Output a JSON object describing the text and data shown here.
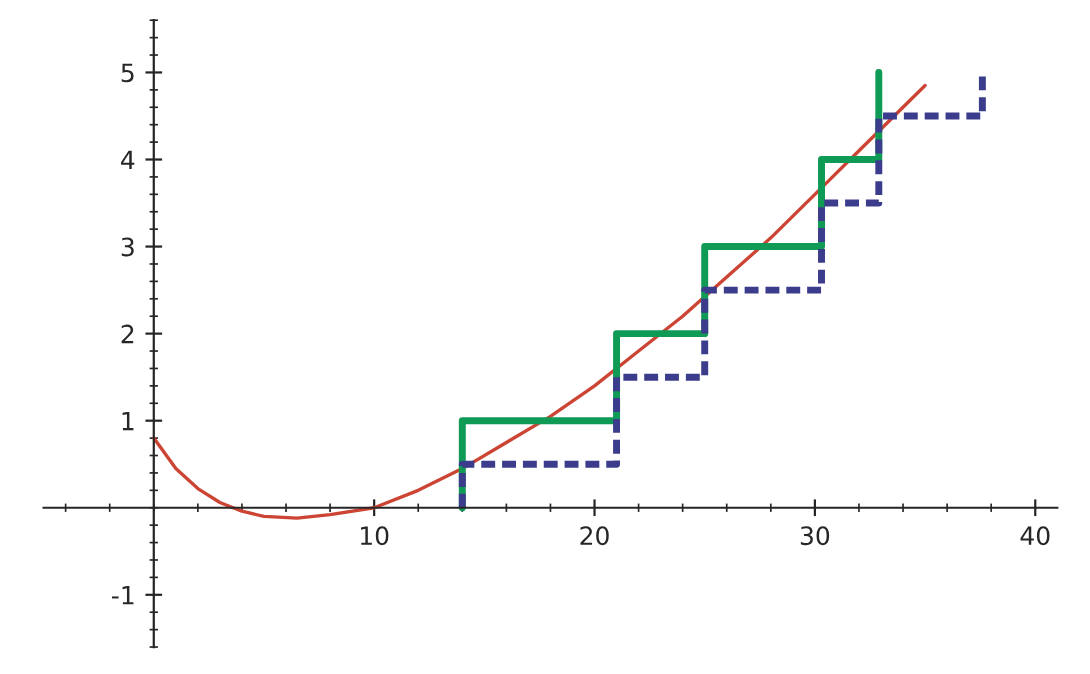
{
  "chart_data": {
    "type": "line",
    "xlim": [
      -5,
      41
    ],
    "ylim": [
      -1.6,
      5.6
    ],
    "xticks": [
      10,
      20,
      30,
      40
    ],
    "yticks": [
      -1,
      1,
      2,
      3,
      4,
      5
    ],
    "grid": false,
    "legend": false,
    "series": [
      {
        "color": "#cc4433",
        "line_style": "solid",
        "x": [
          0,
          1,
          2,
          3,
          4,
          5,
          6.5,
          8,
          10,
          12,
          14,
          16,
          18,
          20,
          22,
          24,
          26,
          28,
          30,
          32,
          34,
          35
        ],
        "values": [
          0.8,
          0.45,
          0.22,
          0.06,
          -0.04,
          -0.1,
          -0.12,
          -0.08,
          0.0,
          0.2,
          0.45,
          0.75,
          1.05,
          1.4,
          1.8,
          2.2,
          2.65,
          3.1,
          3.6,
          4.1,
          4.6,
          4.85
        ]
      },
      {
        "type": "step",
        "color": "#0f9a55",
        "line_style": "solid",
        "x": [
          14,
          14,
          21,
          25,
          30.3,
          32.9
        ],
        "values": [
          0,
          1,
          2,
          3,
          4,
          5
        ]
      },
      {
        "type": "step",
        "color": "#3c3c8c",
        "line_style": "dashed",
        "x": [
          14,
          14,
          21,
          25,
          30.3,
          32.9,
          37.6
        ],
        "values": [
          0,
          0.5,
          1.5,
          2.5,
          3.5,
          4.5,
          5
        ]
      }
    ]
  }
}
